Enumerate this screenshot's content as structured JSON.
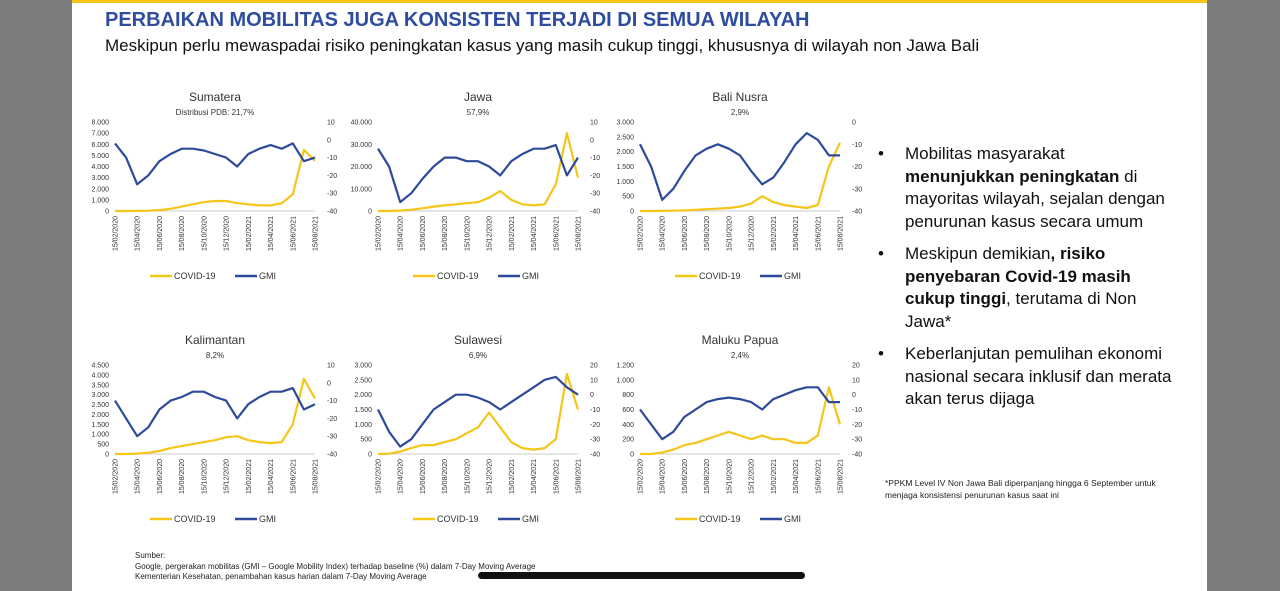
{
  "header": {
    "title": "PERBAIKAN MOBILITAS JUGA KONSISTEN TERJADI DI SEMUA WILAYAH",
    "subtitle": "Meskipun perlu mewaspadai risiko peningkatan kasus yang masih cukup tinggi, khususnya di wilayah non Jawa Bali"
  },
  "chart_data": [
    {
      "type": "line",
      "title": "Sumatera",
      "subtitle": "Distribusi PDB: 21,7%",
      "categories": [
        "15/02/2020",
        null,
        "15/04/2020",
        null,
        "15/06/2020",
        null,
        "15/08/2020",
        null,
        "15/10/2020",
        null,
        "15/12/2020",
        null,
        "15/02/2021",
        null,
        "15/04/2021",
        null,
        "15/06/2021",
        null,
        "15/08/2021"
      ],
      "series": [
        {
          "name": "COVID-19",
          "color": "#f5c518",
          "values": [
            0,
            0,
            10,
            30,
            80,
            200,
            400,
            600,
            800,
            900,
            900,
            700,
            600,
            500,
            500,
            700,
            1500,
            5500,
            4500
          ]
        },
        {
          "name": "GMI",
          "color": "#2e4a9b",
          "axis": "y2",
          "values": [
            -2,
            -10,
            -25,
            -20,
            -12,
            -8,
            -5,
            -5,
            -6,
            -8,
            -10,
            -15,
            -8,
            -5,
            -3,
            -5,
            -2,
            -12,
            -10
          ]
        }
      ],
      "ylim": [
        0,
        8000
      ],
      "yticks": [
        0,
        {
          "value": 1000,
          "label": "1.000"
        },
        {
          "value": 2000,
          "label": "2.000"
        },
        {
          "value": 3000,
          "label": "3.000"
        },
        {
          "value": 4000,
          "label": "4.000"
        },
        {
          "value": 5000,
          "label": "5.000"
        },
        {
          "value": 6000,
          "label": "6.000"
        },
        {
          "value": 7000,
          "label": "7.000"
        },
        {
          "value": 8000,
          "label": "8.000"
        }
      ],
      "y2lim": [
        -40,
        10
      ],
      "y2ticks": [
        -40,
        -30,
        -20,
        -10,
        0,
        10
      ]
    },
    {
      "type": "line",
      "title": "Jawa",
      "subtitle": "57,9%",
      "categories": [
        "15/02/2020",
        null,
        "15/04/2020",
        null,
        "15/06/2020",
        null,
        "15/08/2020",
        null,
        "15/10/2020",
        null,
        "15/12/2020",
        null,
        "15/02/2021",
        null,
        "15/04/2021",
        null,
        "15/06/2021",
        null,
        "15/08/2021"
      ],
      "series": [
        {
          "name": "COVID-19",
          "color": "#f5c518",
          "values": [
            0,
            0,
            200,
            600,
            1200,
            2000,
            2500,
            3000,
            3500,
            4000,
            6000,
            9000,
            5000,
            3000,
            2500,
            3000,
            12000,
            35000,
            15000
          ]
        },
        {
          "name": "GMI",
          "color": "#2e4a9b",
          "axis": "y2",
          "values": [
            -5,
            -15,
            -35,
            -30,
            -22,
            -15,
            -10,
            -10,
            -12,
            -12,
            -15,
            -20,
            -12,
            -8,
            -5,
            -5,
            -3,
            -20,
            -10
          ]
        }
      ],
      "ylim": [
        0,
        40000
      ],
      "yticks": [
        0,
        {
          "value": 10000,
          "label": "10.000"
        },
        {
          "value": 20000,
          "label": "20.000"
        },
        {
          "value": 30000,
          "label": "30.000"
        },
        {
          "value": 40000,
          "label": "40.000"
        }
      ],
      "y2lim": [
        -40,
        10
      ],
      "y2ticks": [
        -40,
        -30,
        -20,
        -10,
        0,
        10
      ]
    },
    {
      "type": "line",
      "title": "Bali Nusra",
      "subtitle": "2,9%",
      "categories": [
        "15/02/2020",
        null,
        "15/04/2020",
        null,
        "15/06/2020",
        null,
        "15/08/2020",
        null,
        "15/10/2020",
        null,
        "15/12/2020",
        null,
        "15/02/2021",
        null,
        "15/04/2021",
        null,
        "15/06/2021",
        null,
        "15/08/2021"
      ],
      "series": [
        {
          "name": "COVID-19",
          "color": "#f5c518",
          "values": [
            0,
            0,
            5,
            10,
            20,
            40,
            60,
            80,
            100,
            150,
            250,
            500,
            300,
            200,
            150,
            100,
            200,
            1500,
            2300
          ]
        },
        {
          "name": "GMI",
          "color": "#2e4a9b",
          "axis": "y2",
          "values": [
            -10,
            -20,
            -35,
            -30,
            -22,
            -15,
            -12,
            -10,
            -12,
            -15,
            -22,
            -28,
            -25,
            -18,
            -10,
            -5,
            -8,
            -15,
            -15
          ]
        }
      ],
      "ylim": [
        0,
        3000
      ],
      "yticks": [
        0,
        500,
        {
          "value": 1000,
          "label": "1.000"
        },
        {
          "value": 1500,
          "label": "1.500"
        },
        {
          "value": 2000,
          "label": "2.000"
        },
        {
          "value": 2500,
          "label": "2.500"
        },
        {
          "value": 3000,
          "label": "3.000"
        }
      ],
      "y2lim": [
        -40,
        0
      ],
      "y2ticks": [
        -40,
        -30,
        -20,
        -10,
        0
      ]
    },
    {
      "type": "line",
      "title": "Kalimantan",
      "subtitle": "8,2%",
      "categories": [
        "15/02/2020",
        null,
        "15/04/2020",
        null,
        "15/06/2020",
        null,
        "15/08/2020",
        null,
        "15/10/2020",
        null,
        "15/12/2020",
        null,
        "15/02/2021",
        null,
        "15/04/2021",
        null,
        "15/06/2021",
        null,
        "15/08/2021"
      ],
      "series": [
        {
          "name": "COVID-19",
          "color": "#f5c518",
          "values": [
            0,
            0,
            20,
            60,
            150,
            300,
            400,
            500,
            600,
            700,
            850,
            900,
            700,
            600,
            550,
            600,
            1500,
            3800,
            2800
          ]
        },
        {
          "name": "GMI",
          "color": "#2e4a9b",
          "axis": "y2",
          "values": [
            -10,
            -20,
            -30,
            -25,
            -15,
            -10,
            -8,
            -5,
            -5,
            -8,
            -10,
            -20,
            -12,
            -8,
            -5,
            -5,
            -3,
            -15,
            -12
          ]
        }
      ],
      "ylim": [
        0,
        4500
      ],
      "yticks": [
        0,
        500,
        {
          "value": 1000,
          "label": "1.000"
        },
        {
          "value": 1500,
          "label": "1.500"
        },
        {
          "value": 2000,
          "label": "2.000"
        },
        {
          "value": 2500,
          "label": "2.500"
        },
        {
          "value": 3000,
          "label": "3.000"
        },
        {
          "value": 3500,
          "label": "3.500"
        },
        {
          "value": 4000,
          "label": "4.000"
        },
        {
          "value": 4500,
          "label": "4.500"
        }
      ],
      "y2lim": [
        -40,
        10
      ],
      "y2ticks": [
        -40,
        -30,
        -20,
        -10,
        0,
        10
      ]
    },
    {
      "type": "line",
      "title": "Sulawesi",
      "subtitle": "6,9%",
      "categories": [
        "15/02/2020",
        null,
        "15/04/2020",
        null,
        "15/06/2020",
        null,
        "15/08/2020",
        null,
        "15/10/2020",
        null,
        "15/12/2020",
        null,
        "15/02/2021",
        null,
        "15/04/2021",
        null,
        "15/06/2021",
        null,
        "15/08/2021"
      ],
      "series": [
        {
          "name": "COVID-19",
          "color": "#f5c518",
          "values": [
            0,
            10,
            80,
            200,
            300,
            300,
            400,
            500,
            700,
            900,
            1400,
            900,
            400,
            200,
            150,
            200,
            500,
            2700,
            1500
          ]
        },
        {
          "name": "GMI",
          "color": "#2e4a9b",
          "axis": "y2",
          "values": [
            -10,
            -25,
            -35,
            -30,
            -20,
            -10,
            -5,
            0,
            0,
            -2,
            -5,
            -10,
            -5,
            0,
            5,
            10,
            12,
            5,
            0
          ]
        }
      ],
      "ylim": [
        0,
        3000
      ],
      "yticks": [
        0,
        500,
        {
          "value": 1000,
          "label": "1.000"
        },
        {
          "value": 1500,
          "label": "1.500"
        },
        {
          "value": 2000,
          "label": "2.000"
        },
        {
          "value": 2500,
          "label": "2.500"
        },
        {
          "value": 3000,
          "label": "3.000"
        }
      ],
      "y2lim": [
        -40,
        20
      ],
      "y2ticks": [
        -40,
        -30,
        -20,
        -10,
        0,
        10,
        20
      ]
    },
    {
      "type": "line",
      "title": "Maluku Papua",
      "subtitle": "2,4%",
      "categories": [
        "15/02/2020",
        null,
        "15/04/2020",
        null,
        "15/06/2020",
        null,
        "15/08/2020",
        null,
        "15/10/2020",
        null,
        "15/12/2020",
        null,
        "15/02/2021",
        null,
        "15/04/2021",
        null,
        "15/06/2021",
        null,
        "15/08/2021"
      ],
      "series": [
        {
          "name": "COVID-19",
          "color": "#f5c518",
          "values": [
            0,
            0,
            20,
            60,
            120,
            150,
            200,
            250,
            300,
            250,
            200,
            250,
            200,
            200,
            150,
            150,
            250,
            900,
            400
          ]
        },
        {
          "name": "GMI",
          "color": "#2e4a9b",
          "axis": "y2",
          "values": [
            -10,
            -20,
            -30,
            -25,
            -15,
            -10,
            -5,
            -3,
            -2,
            -3,
            -5,
            -10,
            -3,
            0,
            3,
            5,
            5,
            -5,
            -5
          ]
        }
      ],
      "ylim": [
        0,
        1200
      ],
      "yticks": [
        0,
        200,
        400,
        600,
        800,
        {
          "value": 1000,
          "label": "1.000"
        },
        {
          "value": 1200,
          "label": "1.200"
        }
      ],
      "y2lim": [
        -40,
        20
      ],
      "y2ticks": [
        -40,
        -30,
        -20,
        -10,
        0,
        10,
        20
      ]
    }
  ],
  "bullets": [
    [
      {
        "text": "Mobilitas masyarakat ",
        "bold": false
      },
      {
        "text": "menunjukkan peningkatan",
        "bold": true
      },
      {
        "text": " di mayoritas wilayah, sejalan dengan penurunan kasus secara umum",
        "bold": false
      }
    ],
    [
      {
        "text": "Meskipun demikian",
        "bold": false
      },
      {
        "text": ", risiko penyebaran Covid-19 masih cukup tinggi",
        "bold": true
      },
      {
        "text": ", terutama di Non Jawa*",
        "bold": false
      }
    ],
    [
      {
        "text": "Keberlanjutan pemulihan ekonomi nasional secara inklusif dan merata akan terus dijaga",
        "bold": false
      }
    ]
  ],
  "footnote": "*PPKM Level IV Non Jawa Bali diperpanjang hingga 6 September untuk menjaga konsistensi penurunan kasus saat ini",
  "source": [
    "Sumber:",
    "Google, pergerakan mobilitas (GMI – Google Mobility Index) terhadap baseline (%) dalam 7-Day Moving Average",
    "Kementerian Kesehatan, penambahan kasus harian dalam 7-Day Moving Average"
  ]
}
